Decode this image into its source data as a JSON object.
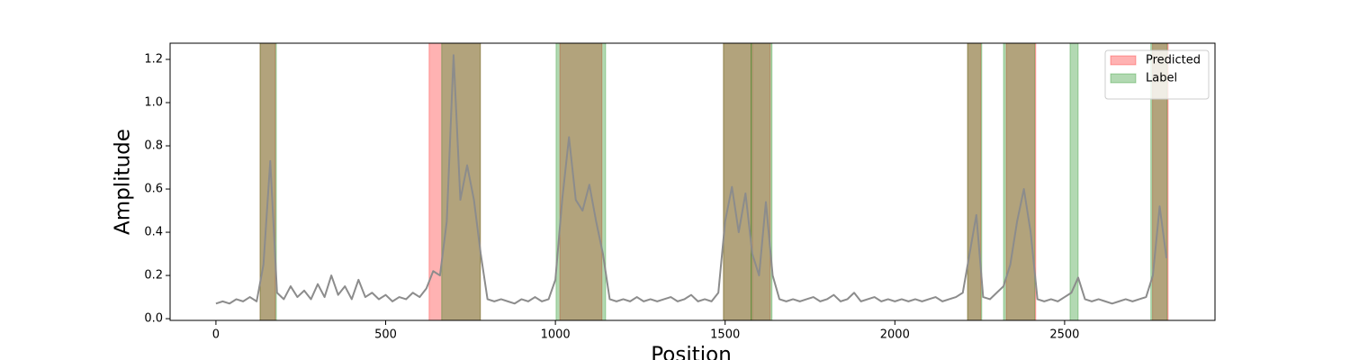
{
  "chart_data": {
    "type": "line",
    "xlabel": "Position",
    "ylabel": "Amplitude",
    "color": "#8c8c8c",
    "x": [
      0,
      20,
      40,
      60,
      80,
      100,
      120,
      140,
      160,
      180,
      200,
      220,
      240,
      260,
      280,
      300,
      320,
      340,
      360,
      380,
      400,
      420,
      440,
      460,
      480,
      500,
      520,
      540,
      560,
      580,
      600,
      620,
      640,
      660,
      680,
      700,
      720,
      740,
      760,
      780,
      800,
      820,
      840,
      860,
      880,
      900,
      920,
      940,
      960,
      980,
      1000,
      1020,
      1040,
      1060,
      1080,
      1100,
      1120,
      1140,
      1160,
      1180,
      1200,
      1220,
      1240,
      1260,
      1280,
      1300,
      1320,
      1340,
      1360,
      1380,
      1400,
      1420,
      1440,
      1460,
      1480,
      1500,
      1520,
      1540,
      1560,
      1580,
      1600,
      1620,
      1640,
      1660,
      1680,
      1700,
      1720,
      1740,
      1760,
      1780,
      1800,
      1820,
      1840,
      1860,
      1880,
      1900,
      1920,
      1940,
      1960,
      1980,
      2000,
      2020,
      2040,
      2060,
      2080,
      2100,
      2120,
      2140,
      2160,
      2180,
      2200,
      2220,
      2240,
      2260,
      2280,
      2300,
      2320,
      2340,
      2360,
      2380,
      2400,
      2420,
      2440,
      2460,
      2480,
      2500,
      2520,
      2540,
      2560,
      2580,
      2600,
      2620,
      2640,
      2660,
      2680,
      2700,
      2720,
      2740,
      2760,
      2780,
      2800
    ],
    "values": [
      0.07,
      0.08,
      0.07,
      0.09,
      0.08,
      0.1,
      0.08,
      0.25,
      0.73,
      0.12,
      0.09,
      0.15,
      0.1,
      0.13,
      0.09,
      0.16,
      0.1,
      0.2,
      0.11,
      0.15,
      0.09,
      0.18,
      0.1,
      0.12,
      0.09,
      0.11,
      0.08,
      0.1,
      0.09,
      0.12,
      0.1,
      0.14,
      0.22,
      0.2,
      0.45,
      1.22,
      0.55,
      0.71,
      0.55,
      0.3,
      0.09,
      0.08,
      0.09,
      0.08,
      0.07,
      0.09,
      0.08,
      0.1,
      0.08,
      0.09,
      0.18,
      0.55,
      0.84,
      0.55,
      0.5,
      0.62,
      0.45,
      0.3,
      0.09,
      0.08,
      0.09,
      0.08,
      0.1,
      0.08,
      0.09,
      0.08,
      0.09,
      0.1,
      0.08,
      0.09,
      0.11,
      0.08,
      0.09,
      0.08,
      0.12,
      0.45,
      0.61,
      0.4,
      0.58,
      0.3,
      0.2,
      0.54,
      0.2,
      0.09,
      0.08,
      0.09,
      0.08,
      0.09,
      0.1,
      0.08,
      0.09,
      0.11,
      0.08,
      0.09,
      0.12,
      0.08,
      0.09,
      0.1,
      0.08,
      0.09,
      0.08,
      0.09,
      0.08,
      0.09,
      0.08,
      0.09,
      0.1,
      0.08,
      0.09,
      0.1,
      0.12,
      0.3,
      0.48,
      0.1,
      0.09,
      0.12,
      0.15,
      0.25,
      0.45,
      0.6,
      0.4,
      0.09,
      0.08,
      0.09,
      0.08,
      0.1,
      0.12,
      0.19,
      0.09,
      0.08,
      0.09,
      0.08,
      0.07,
      0.08,
      0.09,
      0.08,
      0.09,
      0.1,
      0.2,
      0.52,
      0.28
    ],
    "spans": [
      {
        "name": "Predicted",
        "color": "#ff0000",
        "alpha": 0.3,
        "ranges": [
          [
            130,
            175
          ],
          [
            628,
            779
          ],
          [
            1013,
            1137
          ],
          [
            1495,
            1577
          ],
          [
            1580,
            1633
          ],
          [
            2214,
            2253
          ],
          [
            2328,
            2415
          ],
          [
            2759,
            2805
          ]
        ]
      },
      {
        "name": "Label",
        "color": "#008000",
        "alpha": 0.3,
        "ranges": [
          [
            130,
            178
          ],
          [
            665,
            779
          ],
          [
            1002,
            1148
          ],
          [
            1495,
            1577
          ],
          [
            1577,
            1638
          ],
          [
            2214,
            2256
          ],
          [
            2320,
            2412
          ],
          [
            2516,
            2540
          ],
          [
            2754,
            2802
          ]
        ]
      }
    ],
    "xlim": [
      -135,
      2943
    ],
    "ylim": [
      -0.008,
      1.275
    ],
    "xticks": [
      0,
      500,
      1000,
      1500,
      2000,
      2500
    ],
    "yticks": [
      {
        "value": 0,
        "label": "0.0"
      },
      0.2,
      0.4,
      0.6,
      0.8,
      {
        "value": 1,
        "label": "1.0"
      },
      1.2
    ],
    "legend": "upper right"
  }
}
